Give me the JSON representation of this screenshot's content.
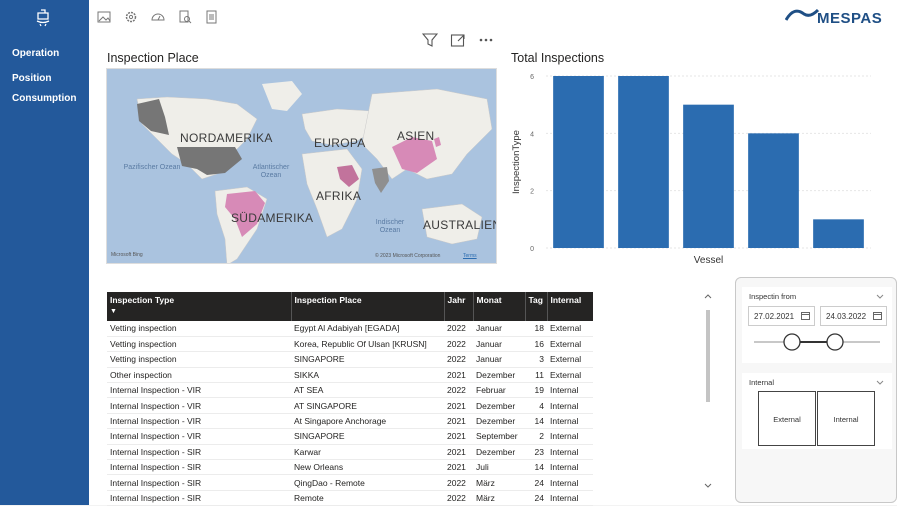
{
  "sidebar": {
    "items": [
      {
        "label": "Operation"
      },
      {
        "label": "Position"
      },
      {
        "label": "Consumption"
      }
    ]
  },
  "brand": {
    "name": "MESPAS",
    "color": "#1f4f85"
  },
  "map_panel": {
    "title": "Inspection Place",
    "continents": [
      "NORDAMERIKA",
      "EUROPA",
      "ASIEN",
      "AFRIKA",
      "SÜDAMERIKA",
      "AUSTRALIEN"
    ],
    "oceans": [
      "Pazifischer Ozean",
      "Atlantischer Ozean",
      "Indischer Ozean"
    ],
    "provider": "Microsoft Bing",
    "copyright": "© 2023 Microsoft Corporation",
    "terms": "Terms"
  },
  "chart_panel": {
    "title": "Total Inspections"
  },
  "chart_data": {
    "type": "bar",
    "title": "Total Inspections",
    "xlabel": "Vessel",
    "ylabel": "InspectionType",
    "categories": [
      "",
      "",
      "",
      "",
      ""
    ],
    "values": [
      6,
      6,
      5,
      4,
      1
    ],
    "ylim": [
      0,
      6
    ],
    "yticks": [
      0,
      2,
      4,
      6
    ],
    "color": "#2b6cb0",
    "grid": true
  },
  "table": {
    "columns": [
      "Inspection Type",
      "Inspection Place",
      "Jahr",
      "Monat",
      "Tag",
      "Internal"
    ],
    "rows": [
      [
        "Vetting inspection",
        "Egypt Al Adabiyah [EGADA]",
        "2022",
        "Januar",
        "18",
        "External"
      ],
      [
        "Vetting inspection",
        "Korea, Republic Of Ulsan [KRUSN]",
        "2022",
        "Januar",
        "16",
        "External"
      ],
      [
        "Vetting inspection",
        "SINGAPORE",
        "2022",
        "Januar",
        "3",
        "External"
      ],
      [
        "Other inspection",
        "SIKKA",
        "2021",
        "Dezember",
        "11",
        "External"
      ],
      [
        "Internal Inspection - VIR",
        "AT SEA",
        "2022",
        "Februar",
        "19",
        "Internal"
      ],
      [
        "Internal Inspection - VIR",
        "AT SINGAPORE",
        "2021",
        "Dezember",
        "4",
        "Internal"
      ],
      [
        "Internal Inspection - VIR",
        "At Singapore Anchorage",
        "2021",
        "Dezember",
        "14",
        "Internal"
      ],
      [
        "Internal Inspection - VIR",
        "SINGAPORE",
        "2021",
        "September",
        "2",
        "Internal"
      ],
      [
        "Internal Inspection - SIR",
        "Karwar",
        "2021",
        "Dezember",
        "23",
        "Internal"
      ],
      [
        "Internal Inspection - SIR",
        "New Orleans",
        "2021",
        "Juli",
        "14",
        "Internal"
      ],
      [
        "Internal Inspection - SIR",
        "QingDao - Remote",
        "2022",
        "März",
        "24",
        "Internal"
      ],
      [
        "Internal Inspection - SIR",
        "Remote",
        "2022",
        "März",
        "24",
        "Internal"
      ]
    ]
  },
  "date_slicer": {
    "title": "Inspectin from",
    "start": "27.02.2021",
    "end": "24.03.2022"
  },
  "internal_slicer": {
    "title": "Internal",
    "options": [
      "External",
      "Internal"
    ]
  }
}
